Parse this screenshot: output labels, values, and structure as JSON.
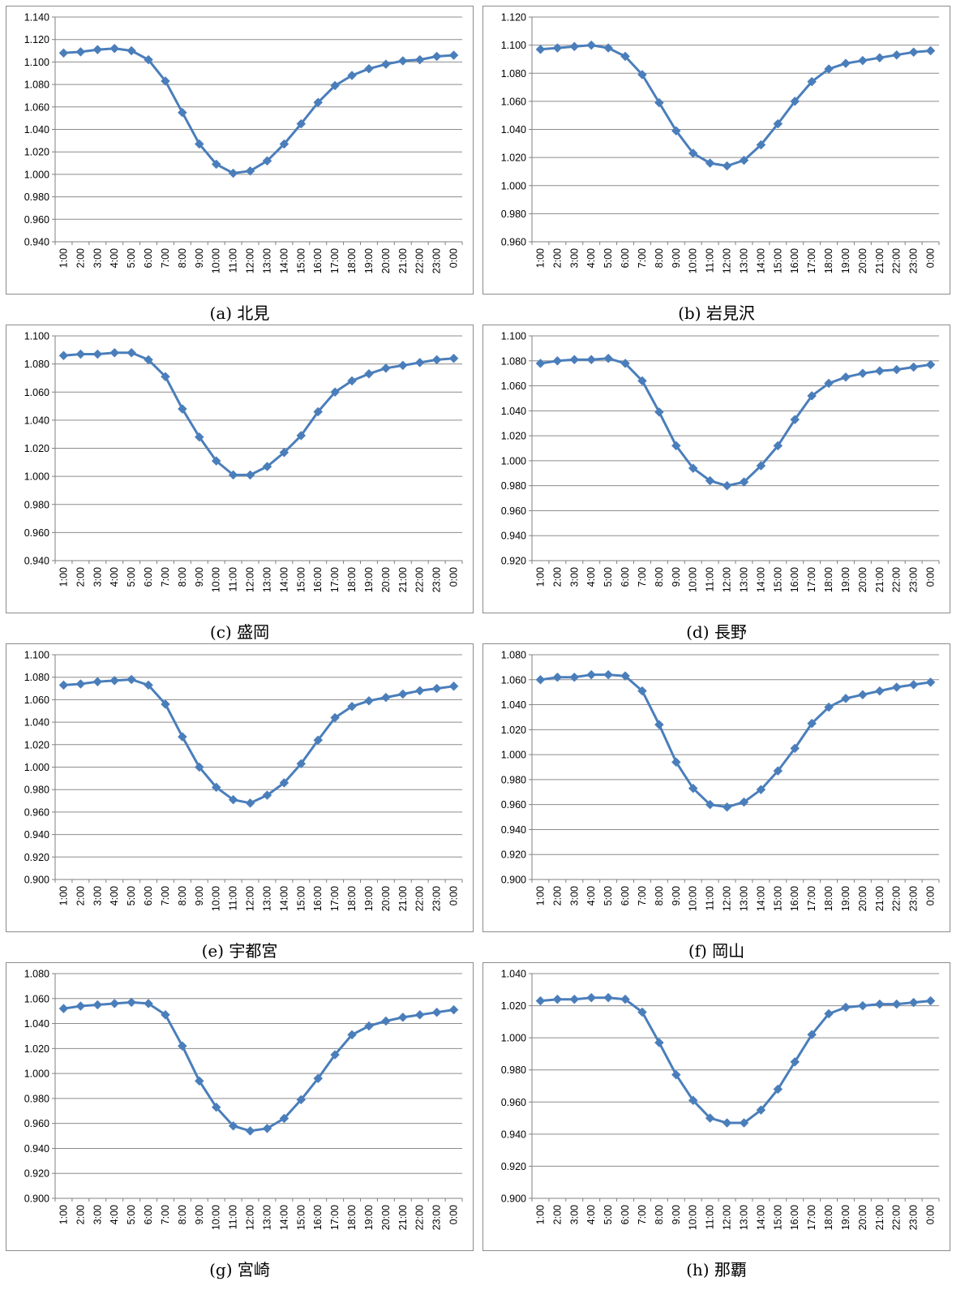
{
  "chart_data": [
    {
      "type": "line",
      "caption": "(a) 北見",
      "categories": [
        "1:00",
        "2:00",
        "3:00",
        "4:00",
        "5:00",
        "6:00",
        "7:00",
        "8:00",
        "9:00",
        "10:00",
        "11:00",
        "12:00",
        "13:00",
        "14:00",
        "15:00",
        "16:00",
        "17:00",
        "18:00",
        "19:00",
        "20:00",
        "21:00",
        "22:00",
        "23:00",
        "0:00"
      ],
      "values": [
        1.108,
        1.109,
        1.111,
        1.112,
        1.11,
        1.102,
        1.083,
        1.055,
        1.027,
        1.009,
        1.001,
        1.003,
        1.012,
        1.027,
        1.045,
        1.064,
        1.079,
        1.088,
        1.094,
        1.098,
        1.101,
        1.102,
        1.105,
        1.106
      ],
      "ylim": [
        0.94,
        1.14
      ],
      "yticks": [
        "0.940",
        "0.960",
        "0.980",
        "1.000",
        "1.020",
        "1.040",
        "1.060",
        "1.080",
        "1.100",
        "1.120",
        "1.140"
      ],
      "color": "#4a7ebb"
    },
    {
      "type": "line",
      "caption": "(b) 岩見沢",
      "categories": [
        "1:00",
        "2:00",
        "3:00",
        "4:00",
        "5:00",
        "6:00",
        "7:00",
        "8:00",
        "9:00",
        "10:00",
        "11:00",
        "12:00",
        "13:00",
        "14:00",
        "15:00",
        "16:00",
        "17:00",
        "18:00",
        "19:00",
        "20:00",
        "21:00",
        "22:00",
        "23:00",
        "0:00"
      ],
      "values": [
        1.097,
        1.098,
        1.099,
        1.1,
        1.098,
        1.092,
        1.079,
        1.059,
        1.039,
        1.023,
        1.016,
        1.014,
        1.018,
        1.029,
        1.044,
        1.06,
        1.074,
        1.083,
        1.087,
        1.089,
        1.091,
        1.093,
        1.095,
        1.096
      ],
      "ylim": [
        0.96,
        1.12
      ],
      "yticks": [
        "0.960",
        "0.980",
        "1.000",
        "1.020",
        "1.040",
        "1.060",
        "1.080",
        "1.100",
        "1.120"
      ],
      "color": "#4a7ebb"
    },
    {
      "type": "line",
      "caption": "(c) 盛岡",
      "categories": [
        "1:00",
        "2:00",
        "3:00",
        "4:00",
        "5:00",
        "6:00",
        "7:00",
        "8:00",
        "9:00",
        "10:00",
        "11:00",
        "12:00",
        "13:00",
        "14:00",
        "15:00",
        "16:00",
        "17:00",
        "18:00",
        "19:00",
        "20:00",
        "21:00",
        "22:00",
        "23:00",
        "0:00"
      ],
      "values": [
        1.086,
        1.087,
        1.087,
        1.088,
        1.088,
        1.083,
        1.071,
        1.048,
        1.028,
        1.011,
        1.001,
        1.001,
        1.007,
        1.017,
        1.029,
        1.046,
        1.06,
        1.068,
        1.073,
        1.077,
        1.079,
        1.081,
        1.083,
        1.084
      ],
      "ylim": [
        0.94,
        1.1
      ],
      "yticks": [
        "0.940",
        "0.960",
        "0.980",
        "1.000",
        "1.020",
        "1.040",
        "1.060",
        "1.080",
        "1.100"
      ],
      "color": "#4a7ebb"
    },
    {
      "type": "line",
      "caption": "(d) 長野",
      "categories": [
        "1:00",
        "2:00",
        "3:00",
        "4:00",
        "5:00",
        "6:00",
        "7:00",
        "8:00",
        "9:00",
        "10:00",
        "11:00",
        "12:00",
        "13:00",
        "14:00",
        "15:00",
        "16:00",
        "17:00",
        "18:00",
        "19:00",
        "20:00",
        "21:00",
        "22:00",
        "23:00",
        "0:00"
      ],
      "values": [
        1.078,
        1.08,
        1.081,
        1.081,
        1.082,
        1.078,
        1.064,
        1.039,
        1.012,
        0.994,
        0.984,
        0.98,
        0.983,
        0.996,
        1.012,
        1.033,
        1.052,
        1.062,
        1.067,
        1.07,
        1.072,
        1.073,
        1.075,
        1.077
      ],
      "ylim": [
        0.92,
        1.1
      ],
      "yticks": [
        "0.920",
        "0.940",
        "0.960",
        "0.980",
        "1.000",
        "1.020",
        "1.040",
        "1.060",
        "1.080",
        "1.100"
      ],
      "color": "#4a7ebb"
    },
    {
      "type": "line",
      "caption": "(e) 宇都宮",
      "categories": [
        "1:00",
        "2:00",
        "3:00",
        "4:00",
        "5:00",
        "6:00",
        "7:00",
        "8:00",
        "9:00",
        "10:00",
        "11:00",
        "12:00",
        "13:00",
        "14:00",
        "15:00",
        "16:00",
        "17:00",
        "18:00",
        "19:00",
        "20:00",
        "21:00",
        "22:00",
        "23:00",
        "0:00"
      ],
      "values": [
        1.073,
        1.074,
        1.076,
        1.077,
        1.078,
        1.073,
        1.056,
        1.027,
        1.0,
        0.982,
        0.971,
        0.968,
        0.975,
        0.986,
        1.003,
        1.024,
        1.044,
        1.054,
        1.059,
        1.062,
        1.065,
        1.068,
        1.07,
        1.072
      ],
      "ylim": [
        0.9,
        1.1
      ],
      "yticks": [
        "0.900",
        "0.920",
        "0.940",
        "0.960",
        "0.980",
        "1.000",
        "1.020",
        "1.040",
        "1.060",
        "1.080",
        "1.100"
      ],
      "color": "#4a7ebb"
    },
    {
      "type": "line",
      "caption": "(f) 岡山",
      "categories": [
        "1:00",
        "2:00",
        "3:00",
        "4:00",
        "5:00",
        "6:00",
        "7:00",
        "8:00",
        "9:00",
        "10:00",
        "11:00",
        "12:00",
        "13:00",
        "14:00",
        "15:00",
        "16:00",
        "17:00",
        "18:00",
        "19:00",
        "20:00",
        "21:00",
        "22:00",
        "23:00",
        "0:00"
      ],
      "values": [
        1.06,
        1.062,
        1.062,
        1.064,
        1.064,
        1.063,
        1.051,
        1.024,
        0.994,
        0.973,
        0.96,
        0.958,
        0.962,
        0.972,
        0.987,
        1.005,
        1.025,
        1.038,
        1.045,
        1.048,
        1.051,
        1.054,
        1.056,
        1.058
      ],
      "ylim": [
        0.9,
        1.08
      ],
      "yticks": [
        "0.900",
        "0.920",
        "0.940",
        "0.960",
        "0.980",
        "1.000",
        "1.020",
        "1.040",
        "1.060",
        "1.080"
      ],
      "color": "#4a7ebb"
    },
    {
      "type": "line",
      "caption": "(g) 宮崎",
      "categories": [
        "1:00",
        "2:00",
        "3:00",
        "4:00",
        "5:00",
        "6:00",
        "7:00",
        "8:00",
        "9:00",
        "10:00",
        "11:00",
        "12:00",
        "13:00",
        "14:00",
        "15:00",
        "16:00",
        "17:00",
        "18:00",
        "19:00",
        "20:00",
        "21:00",
        "22:00",
        "23:00",
        "0:00"
      ],
      "values": [
        1.052,
        1.054,
        1.055,
        1.056,
        1.057,
        1.056,
        1.047,
        1.022,
        0.994,
        0.973,
        0.958,
        0.954,
        0.956,
        0.964,
        0.979,
        0.996,
        1.015,
        1.031,
        1.038,
        1.042,
        1.045,
        1.047,
        1.049,
        1.051
      ],
      "ylim": [
        0.9,
        1.08
      ],
      "yticks": [
        "0.900",
        "0.920",
        "0.940",
        "0.960",
        "0.980",
        "1.000",
        "1.020",
        "1.040",
        "1.060",
        "1.080"
      ],
      "color": "#4a7ebb"
    },
    {
      "type": "line",
      "caption": "(h) 那覇",
      "categories": [
        "1:00",
        "2:00",
        "3:00",
        "4:00",
        "5:00",
        "6:00",
        "7:00",
        "8:00",
        "9:00",
        "10:00",
        "11:00",
        "12:00",
        "13:00",
        "14:00",
        "15:00",
        "16:00",
        "17:00",
        "18:00",
        "19:00",
        "20:00",
        "21:00",
        "22:00",
        "23:00",
        "0:00"
      ],
      "values": [
        1.023,
        1.024,
        1.024,
        1.025,
        1.025,
        1.024,
        1.016,
        0.997,
        0.977,
        0.961,
        0.95,
        0.947,
        0.947,
        0.955,
        0.968,
        0.985,
        1.002,
        1.015,
        1.019,
        1.02,
        1.021,
        1.021,
        1.022,
        1.023
      ],
      "ylim": [
        0.9,
        1.04
      ],
      "yticks": [
        "0.900",
        "0.920",
        "0.940",
        "0.960",
        "0.980",
        "1.000",
        "1.020",
        "1.040"
      ],
      "color": "#4a7ebb"
    }
  ]
}
